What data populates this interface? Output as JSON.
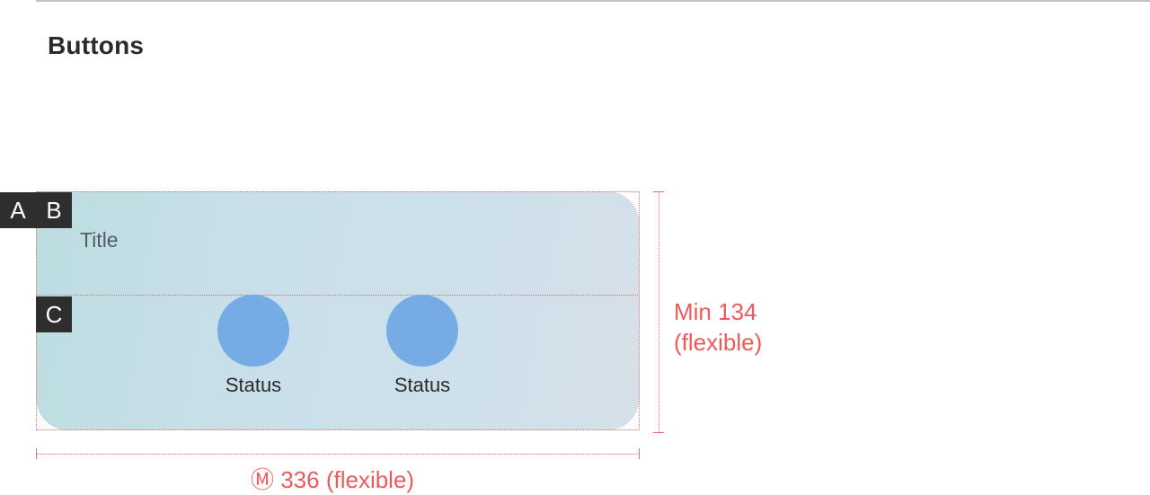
{
  "section": {
    "title": "Buttons"
  },
  "card": {
    "title": "Title",
    "statuses": [
      {
        "label": "Status"
      },
      {
        "label": "Status"
      }
    ]
  },
  "markers": {
    "a": "A",
    "b": "B",
    "c": "C"
  },
  "dimensions": {
    "height_line1": "Min 134",
    "height_line2": "(flexible)",
    "width": "Ⓜ 336 (flexible)"
  },
  "colors": {
    "annotation": "#ec5b5b",
    "status_circle": "#75ace6",
    "marker_bg": "#2e2e2e"
  }
}
